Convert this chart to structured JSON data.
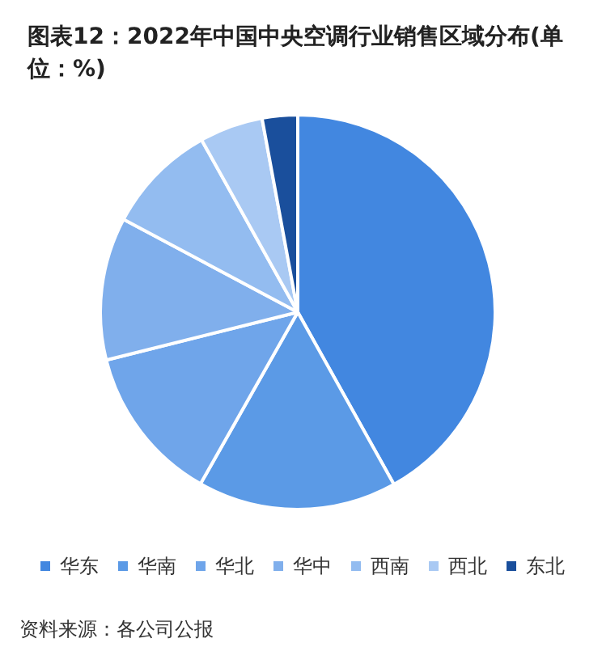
{
  "chart_data": {
    "type": "pie",
    "title": "图表12：2022年中国中央空调行业销售区域分布(单位：%)",
    "categories": [
      "华东",
      "华南",
      "华北",
      "华中",
      "西南",
      "西北",
      "东北"
    ],
    "values": [
      41.9,
      16.3,
      12.9,
      11.7,
      9.1,
      5.2,
      2.9
    ],
    "colors": [
      "#4287e0",
      "#5b9ae6",
      "#6fa5ea",
      "#80afec",
      "#93bcf0",
      "#a9c9f3",
      "#1a4f9c"
    ],
    "legend": "bottom",
    "annotations": [
      "资料来源：各公司公报"
    ]
  }
}
